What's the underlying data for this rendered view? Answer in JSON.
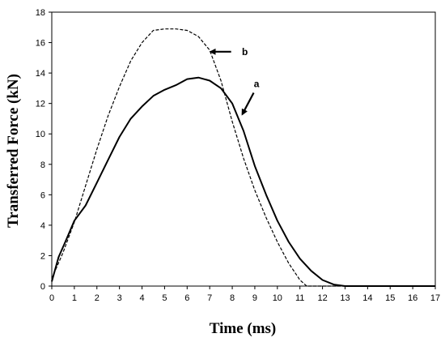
{
  "chart_data": {
    "type": "line",
    "xlabel": "Time (ms)",
    "ylabel": "Transferred Force (kN)",
    "xlim": [
      0,
      17
    ],
    "ylim": [
      0,
      18
    ],
    "xticks": [
      0,
      1,
      2,
      3,
      4,
      5,
      6,
      7,
      8,
      9,
      10,
      11,
      12,
      13,
      14,
      15,
      16,
      17
    ],
    "yticks": [
      0,
      2,
      4,
      6,
      8,
      10,
      12,
      14,
      16,
      18
    ],
    "grid": false,
    "legend": "none",
    "series": [
      {
        "name": "a",
        "style": "solid",
        "x": [
          0,
          0.3,
          0.6,
          1,
          1.5,
          2,
          2.5,
          3,
          3.5,
          4,
          4.5,
          5,
          5.5,
          6,
          6.5,
          7,
          7.5,
          8,
          8.5,
          9,
          9.5,
          10,
          10.5,
          11,
          11.5,
          12,
          12.5,
          13,
          14,
          15,
          16,
          17
        ],
        "y": [
          0.3,
          1.9,
          2.9,
          4.3,
          5.3,
          6.8,
          8.3,
          9.8,
          11.0,
          11.8,
          12.5,
          12.9,
          13.2,
          13.6,
          13.7,
          13.5,
          13.0,
          12.0,
          10.2,
          7.9,
          6.0,
          4.3,
          2.9,
          1.8,
          1.0,
          0.4,
          0.1,
          0,
          0,
          0,
          0,
          0
        ]
      },
      {
        "name": "b",
        "style": "dashed",
        "x": [
          0,
          0.5,
          1,
          1.5,
          2,
          2.5,
          3,
          3.5,
          4,
          4.5,
          5,
          5.5,
          6,
          6.5,
          7,
          7.5,
          8,
          8.5,
          9,
          9.5,
          10,
          10.5,
          11,
          11.3
        ],
        "y": [
          0.5,
          2.2,
          4.2,
          6.6,
          9.0,
          11.2,
          13.1,
          14.8,
          16.0,
          16.8,
          16.9,
          16.9,
          16.8,
          16.4,
          15.5,
          13.5,
          10.8,
          8.4,
          6.3,
          4.5,
          2.9,
          1.5,
          0.4,
          0
        ]
      }
    ],
    "annotations": [
      {
        "text": "a",
        "x": 8.6,
        "y": 13.3
      },
      {
        "text": "b",
        "x": 8.0,
        "y": 15.4
      }
    ]
  }
}
